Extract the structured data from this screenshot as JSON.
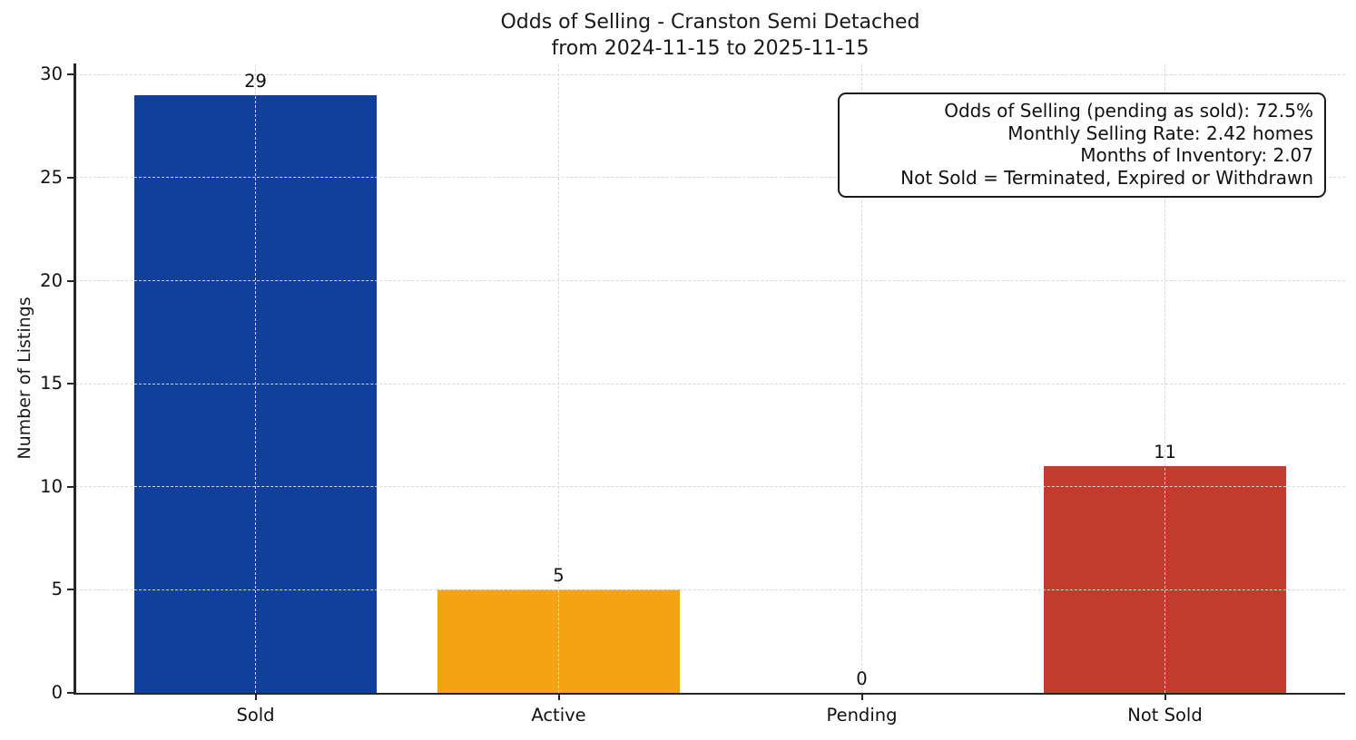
{
  "chart_data": {
    "type": "bar",
    "title_lines": [
      "Odds of Selling - Cranston Semi Detached",
      "from 2024-11-15 to 2025-11-15"
    ],
    "ylabel": "Number of Listings",
    "xlabel": "",
    "categories": [
      "Sold",
      "Active",
      "Pending",
      "Not Sold"
    ],
    "values": [
      29,
      5,
      0,
      11
    ],
    "bar_colors": [
      "#11409c",
      "#f3a314",
      "#808080",
      "#c23b2c"
    ],
    "yticks": [
      0,
      5,
      10,
      15,
      20,
      25,
      30
    ],
    "ylim": [
      0,
      30.5
    ],
    "grid": {
      "visible": true,
      "style": "dashed",
      "axis": "both",
      "color": "#d8d8d8",
      "above_bars": true
    },
    "legend": "none",
    "annotations": [
      "Odds of Selling (pending as sold): 72.5%",
      "Monthly Selling Rate: 2.42 homes",
      "Months of Inventory: 2.07",
      "Not Sold = Terminated, Expired or Withdrawn"
    ]
  }
}
